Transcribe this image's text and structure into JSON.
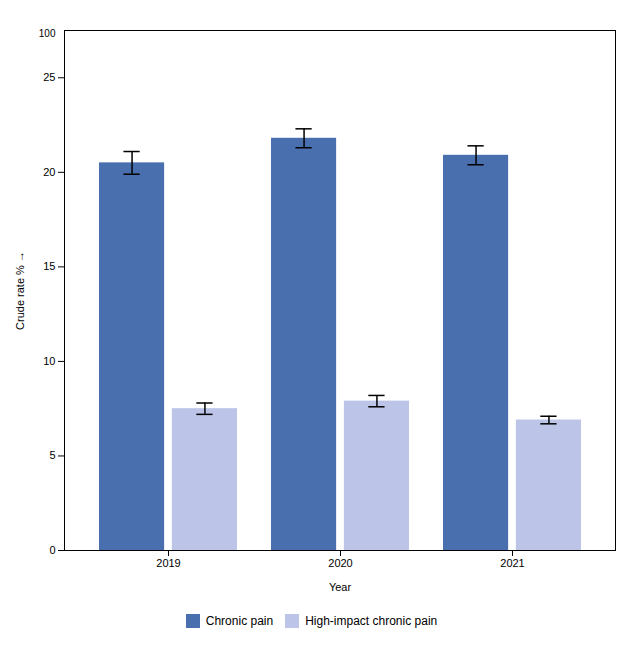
{
  "chart_data": {
    "type": "bar",
    "categories": [
      "2019",
      "2020",
      "2021"
    ],
    "series": [
      {
        "name": "Chronic pain",
        "color": "#4a6faf",
        "values": [
          20.5,
          21.8,
          20.9
        ],
        "errors": [
          0.6,
          0.5,
          0.5
        ]
      },
      {
        "name": "High-impact chronic pain",
        "color": "#bcc5e8",
        "values": [
          7.5,
          7.9,
          6.9
        ],
        "errors": [
          0.3,
          0.3,
          0.2
        ]
      }
    ],
    "xlabel": "Year",
    "ylabel": "Crude rate %",
    "ylim": [
      0,
      27.5
    ],
    "yticks": [
      0,
      5,
      10,
      15,
      20,
      25
    ],
    "grid": false,
    "legend": "bottom",
    "annotations": [
      {
        "text": "100",
        "y": 27.3
      }
    ]
  }
}
